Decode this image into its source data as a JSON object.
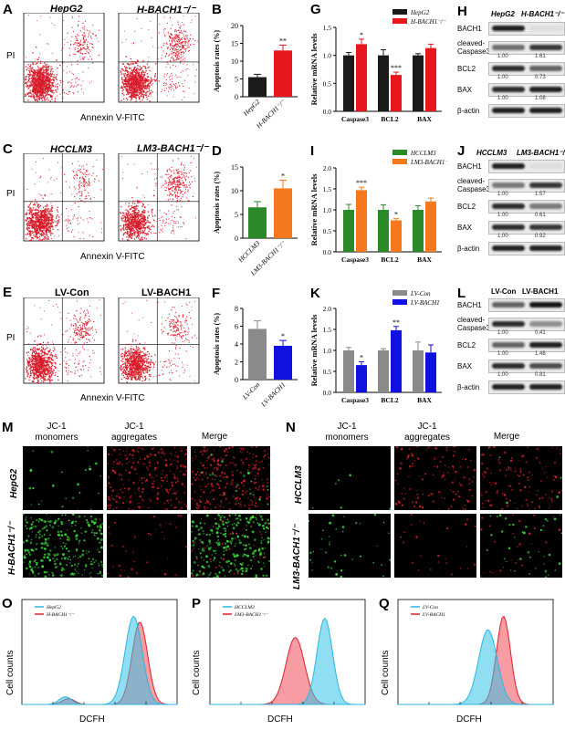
{
  "panels": {
    "A": {
      "letter": "A",
      "left_title": "HepG2",
      "right_title": "H-BACH1⁻/⁻",
      "ylabel": "PI",
      "xlabel": "Annexin V-FITC"
    },
    "C": {
      "letter": "C",
      "left_title": "HCCLM3",
      "right_title": "LM3-BACH1⁻/⁻",
      "ylabel": "PI",
      "xlabel": "Annexin V-FITC"
    },
    "E": {
      "letter": "E",
      "left_title": "LV-Con",
      "right_title": "LV-BACH1",
      "ylabel": "PI",
      "xlabel": "Annexin V-FITC"
    },
    "H": {
      "letter": "H",
      "col1": "HepG2",
      "col2": "H-BACH1⁻/⁻",
      "rows": [
        {
          "label": "BACH1",
          "q1": "",
          "q2": ""
        },
        {
          "label": "cleaved-\nCaspase3",
          "q1": "1.00",
          "q2": "1.61"
        },
        {
          "label": "BCL2",
          "q1": "1.00",
          "q2": "0.73"
        },
        {
          "label": "BAX",
          "q1": "1.00",
          "q2": "1.08"
        },
        {
          "label": "β-actin",
          "q1": "",
          "q2": ""
        }
      ]
    },
    "J": {
      "letter": "J",
      "col1": "HCCLM3",
      "col2": "LM3-BACH1⁻/⁻",
      "rows": [
        {
          "label": "BACH1",
          "q1": "",
          "q2": ""
        },
        {
          "label": "cleaved-\nCaspase3",
          "q1": "1.00",
          "q2": "1.57"
        },
        {
          "label": "BCL2",
          "q1": "1.00",
          "q2": "0.61"
        },
        {
          "label": "BAX",
          "q1": "1.00",
          "q2": "0.92"
        },
        {
          "label": "β-actin",
          "q1": "",
          "q2": ""
        }
      ]
    },
    "L": {
      "letter": "L",
      "col1": "LV-Con",
      "col2": "LV-BACH1",
      "rows": [
        {
          "label": "BACH1",
          "q1": "",
          "q2": ""
        },
        {
          "label": "cleaved-\nCaspase3",
          "q1": "1.00",
          "q2": "0.41"
        },
        {
          "label": "BCL2",
          "q1": "1.00",
          "q2": "1.48"
        },
        {
          "label": "BAX",
          "q1": "1.00",
          "q2": "0.81"
        },
        {
          "label": "β-actin",
          "q1": "",
          "q2": ""
        }
      ]
    },
    "M": {
      "letter": "M",
      "col1": "JC-1\nmonomers",
      "col2": "JC-1\naggregates",
      "col3": "Merge",
      "row1": "HepG2",
      "row2": "H-BACH1⁻/⁻"
    },
    "N": {
      "letter": "N",
      "col1": "JC-1\nmonomers",
      "col2": "JC-1\naggregates",
      "col3": "Merge",
      "row1": "HCCLM3",
      "row2": "LM3-BACH1⁻/⁻"
    },
    "O": {
      "letter": "O",
      "ylabel": "Cell counts",
      "xlabel": "DCFH",
      "legend1": "HepG2",
      "legend2": "H-BACH1⁻/⁻"
    },
    "P": {
      "letter": "P",
      "ylabel": "Cell counts",
      "xlabel": "DCFH",
      "legend1": "HCCLM3",
      "legend2": "LM3-BACH1⁻/⁻"
    },
    "Q": {
      "letter": "Q",
      "ylabel": "Cell counts",
      "xlabel": "DCFH",
      "legend1": "LV-Con",
      "legend2": "LV-BACH1"
    }
  },
  "chart_data": [
    {
      "id": "B",
      "type": "bar",
      "letter": "B",
      "ylabel": "Apoptosis rates (%)",
      "categories": [
        "HepG2",
        "H-BACH1⁻/⁻"
      ],
      "values": [
        5.5,
        13
      ],
      "errors": [
        0.8,
        1.5
      ],
      "colors": [
        "#1a1a1a",
        "#e8171e"
      ],
      "sig": [
        "",
        "**"
      ],
      "ylim": [
        0,
        20
      ],
      "yticks": [
        0,
        5,
        10,
        15,
        20
      ]
    },
    {
      "id": "D",
      "type": "bar",
      "letter": "D",
      "ylabel": "Apoptosis rates (%)",
      "categories": [
        "HCCLM3",
        "LM3-BACH1⁻/⁻"
      ],
      "values": [
        6.5,
        10.5
      ],
      "errors": [
        1.2,
        1.7
      ],
      "colors": [
        "#2a8a2a",
        "#f5781e"
      ],
      "sig": [
        "",
        "*"
      ],
      "ylim": [
        0,
        15
      ],
      "yticks": [
        0,
        5,
        10,
        15
      ]
    },
    {
      "id": "F",
      "type": "bar",
      "letter": "F",
      "ylabel": "Apoptosis rates (%)",
      "categories": [
        "LV-Con",
        "LV-BACH1"
      ],
      "values": [
        5.7,
        3.8
      ],
      "errors": [
        0.9,
        0.6
      ],
      "colors": [
        "#8a8a8a",
        "#1010e0"
      ],
      "sig": [
        "",
        "*"
      ],
      "ylim": [
        0,
        8
      ],
      "yticks": [
        0,
        2,
        4,
        6,
        8
      ]
    },
    {
      "id": "G",
      "type": "bar",
      "letter": "G",
      "ylabel": "Relative mRNA levels",
      "categories": [
        "Caspase3",
        "BCL2",
        "BAX"
      ],
      "ylim": [
        0,
        1.5
      ],
      "yticks": [
        0.0,
        0.5,
        1.0,
        1.5
      ],
      "series": [
        {
          "name": "HepG2",
          "color": "#1a1a1a",
          "values": [
            1.0,
            1.0,
            1.0
          ],
          "errors": [
            0.05,
            0.1,
            0.03
          ]
        },
        {
          "name": "H-BACH1⁻/⁻",
          "color": "#e8171e",
          "values": [
            1.2,
            0.65,
            1.13
          ],
          "errors": [
            0.09,
            0.05,
            0.07
          ],
          "sig": [
            "*",
            "***",
            ""
          ]
        }
      ]
    },
    {
      "id": "I",
      "type": "bar",
      "letter": "I",
      "ylabel": "Relative mRNA levels",
      "categories": [
        "Caspase3",
        "BCL2",
        "BAX"
      ],
      "ylim": [
        0,
        2.0
      ],
      "yticks": [
        0.0,
        0.5,
        1.0,
        1.5,
        2.0
      ],
      "series": [
        {
          "name": "HCCLM3",
          "color": "#2a8a2a",
          "values": [
            1.0,
            1.0,
            1.0
          ],
          "errors": [
            0.13,
            0.12,
            0.1
          ],
          "sig": [
            "",
            "",
            ""
          ]
        },
        {
          "name": "LM3-BACH1⁻/⁻",
          "color": "#f5781e",
          "values": [
            1.47,
            0.75,
            1.2
          ],
          "errors": [
            0.07,
            0.04,
            0.08
          ],
          "sig": [
            "***",
            "*",
            ""
          ]
        }
      ]
    },
    {
      "id": "K",
      "type": "bar",
      "letter": "K",
      "ylabel": "Relative mRNA levels",
      "categories": [
        "Caspase3",
        "BCL2",
        "BAX"
      ],
      "ylim": [
        0,
        2.0
      ],
      "yticks": [
        0.0,
        0.5,
        1.0,
        1.5,
        2.0
      ],
      "series": [
        {
          "name": "LV-Con",
          "color": "#8a8a8a",
          "values": [
            1.0,
            1.0,
            1.0
          ],
          "errors": [
            0.07,
            0.04,
            0.2
          ],
          "sig": [
            "",
            "",
            ""
          ]
        },
        {
          "name": "LV-BACH1",
          "color": "#1010e0",
          "values": [
            0.65,
            1.48,
            0.95
          ],
          "errors": [
            0.08,
            0.09,
            0.18
          ],
          "sig": [
            "*",
            "**",
            ""
          ]
        }
      ]
    }
  ],
  "colors": {
    "red_dots": "#d81b2a",
    "cyan_hist": "#35c3e8",
    "red_hist": "#ee4b55",
    "green_cells": "#3fdc3f",
    "red_cells": "#d0202a"
  }
}
